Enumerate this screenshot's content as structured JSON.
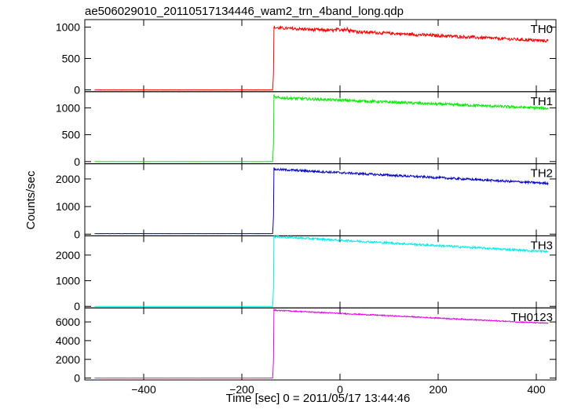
{
  "chart_data": {
    "type": "line",
    "title": "ae506029010_20110517134446_wam2_trn_4band_long.qdp",
    "xlabel": "Time [sec] 0 = 2011/05/17 13:44:46",
    "ylabel": "Counts/sec",
    "xlim": [
      -520,
      440
    ],
    "xticks": [
      -400,
      -200,
      0,
      200,
      400
    ],
    "xtick_labels": [
      "−400",
      "−200",
      "0",
      "200",
      "400"
    ],
    "panels": [
      {
        "name": "TH0",
        "color": "#ff0000",
        "ylim": [
          -30,
          1120
        ],
        "yticks": [
          0,
          500,
          1000
        ],
        "baseline": 0,
        "onset_x": -137,
        "peak": 1000,
        "start_level": 990,
        "end_level": 780,
        "noise": 25,
        "bumps": [
          {
            "x": 10,
            "h": 60
          }
        ]
      },
      {
        "name": "TH1",
        "color": "#00ee00",
        "ylim": [
          -40,
          1300
        ],
        "yticks": [
          0,
          500,
          1000
        ],
        "baseline": 0,
        "onset_x": -137,
        "peak": 1250,
        "start_level": 1190,
        "end_level": 990,
        "noise": 25,
        "bumps": []
      },
      {
        "name": "TH2",
        "color": "#0000cc",
        "ylim": [
          -60,
          2550
        ],
        "yticks": [
          0,
          1000,
          2000
        ],
        "baseline": 20,
        "onset_x": -137,
        "peak": 2400,
        "start_level": 2350,
        "end_level": 1840,
        "noise": 40,
        "bumps": []
      },
      {
        "name": "TH3",
        "color": "#00eeee",
        "ylim": [
          -60,
          2750
        ],
        "yticks": [
          0,
          1000,
          2000
        ],
        "baseline": 0,
        "onset_x": -137,
        "peak": 2750,
        "start_level": 2720,
        "end_level": 2130,
        "noise": 40,
        "bumps": []
      },
      {
        "name": "TH0123",
        "color": "#ee00ee",
        "ylim": [
          -200,
          7500
        ],
        "yticks": [
          0,
          2000,
          4000,
          6000
        ],
        "baseline": 0,
        "onset_x": -137,
        "peak": 7400,
        "start_level": 7250,
        "end_level": 5850,
        "noise": 60,
        "bumps": []
      }
    ],
    "grid": false,
    "legend": "panel labels top-right"
  }
}
